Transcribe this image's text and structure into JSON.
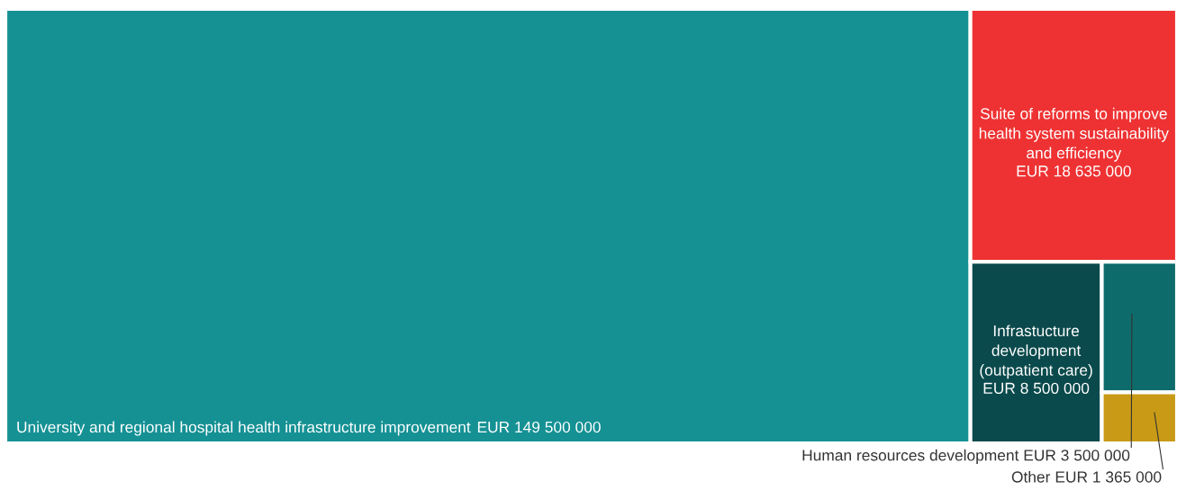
{
  "chart_data": {
    "type": "other",
    "categories": [
      "University and regional hospital health infrastructure improvement",
      "Suite of reforms to improve health system sustainability and efficiency",
      "Infrastucture development (outpatient care)",
      "Human resources development",
      "Other"
    ],
    "values": [
      149500000,
      18635000,
      8500000,
      3500000,
      1365000
    ],
    "value_labels": [
      "EUR 149 500 000",
      "EUR 18 635 000",
      "EUR 8 500 000",
      "EUR 3 500 000",
      "EUR 1 365 000"
    ],
    "colors": [
      "#159194",
      "#ee3233",
      "#0b4a4c",
      "#0e6b6b",
      "#c89a16"
    ]
  }
}
